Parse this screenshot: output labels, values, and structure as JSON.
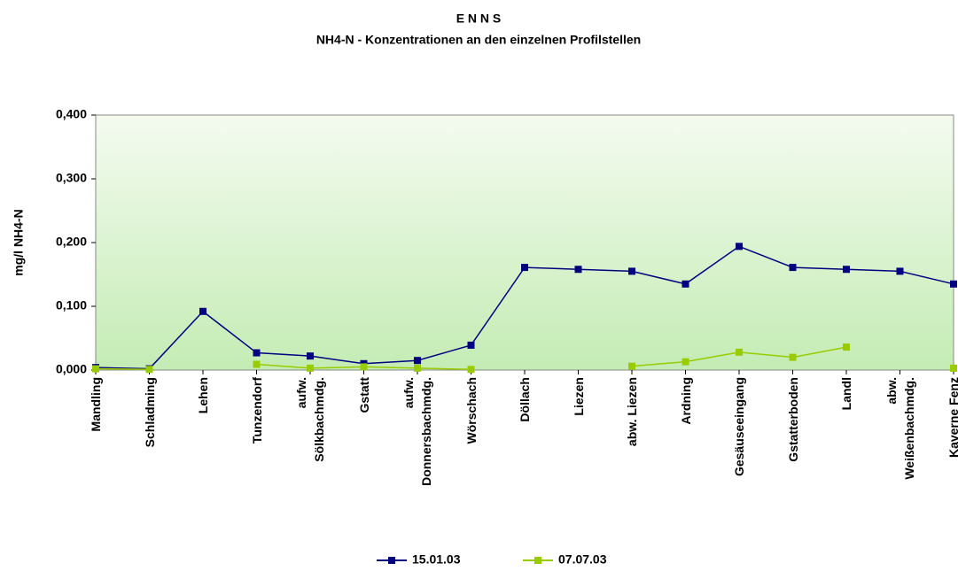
{
  "chart_data": {
    "type": "line",
    "title": "E N N S",
    "subtitle": "NH4-N - Konzentrationen an den einzelnen Profilstellen",
    "y_label": "mg/l NH4-N",
    "categories": [
      "Mandling",
      "Schladming",
      "Lehen",
      "Tunzendorf",
      "aufw.\nSölkbachmdg.",
      "Gstatt",
      "aufw.\nDonnersbachmdg.",
      "Wörschach",
      "Döllach",
      "Liezen",
      "abw. Liezen",
      "Ardning",
      "Gesäuseeingang",
      "Gstatterboden",
      "Landl",
      "abw.\nWeißenbachmdg.",
      "Kaverne Fenz"
    ],
    "series": [
      {
        "name": "15.01.03",
        "color": "#000080",
        "values": [
          0.004,
          0.002,
          0.092,
          0.027,
          0.022,
          0.01,
          0.015,
          0.039,
          0.161,
          0.158,
          0.155,
          0.135,
          0.194,
          0.161,
          0.158,
          0.155,
          0.135
        ]
      },
      {
        "name": "07.07.03",
        "color": "#99cc00",
        "values": [
          0.002,
          0.001,
          null,
          0.009,
          0.003,
          0.005,
          0.003,
          0.001,
          null,
          null,
          0.006,
          0.013,
          0.028,
          0.02,
          0.036,
          null,
          0.003
        ]
      }
    ],
    "ylim": [
      0,
      0.4
    ],
    "yticks": [
      {
        "value": 0,
        "label": "0,000"
      },
      {
        "value": 0.1,
        "label": "0,100"
      },
      {
        "value": 0.2,
        "label": "0,200"
      },
      {
        "value": 0.3,
        "label": "0,300"
      },
      {
        "value": 0.4,
        "label": "0,400"
      }
    ],
    "legend": "bottom"
  }
}
